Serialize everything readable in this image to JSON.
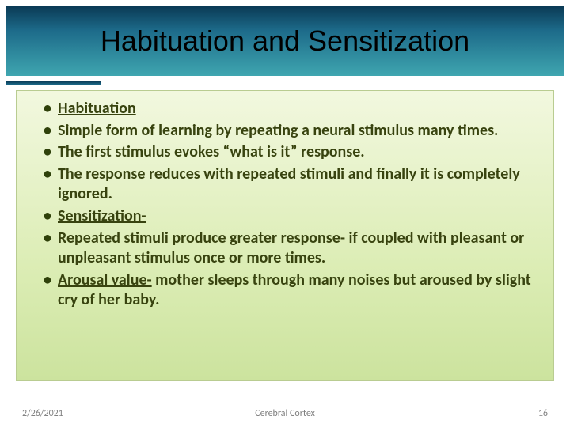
{
  "title": "Habituation and Sensitization",
  "title_bar": {
    "gradient_top": "#0a3a55",
    "gradient_mid": "#1d6b8a",
    "gradient_bottom": "#3fa6b0",
    "text_color": "#000000",
    "fontsize": 36
  },
  "content_box": {
    "gradient_top": "#f2f8df",
    "gradient_mid": "#dcedb5",
    "gradient_bottom": "#cce39e",
    "border_color": "#b9cc91",
    "text_color": "#38430f",
    "fontsize": 20,
    "font_weight": 600
  },
  "bullets": [
    {
      "segments": [
        {
          "text": "Habituation",
          "underline": true
        }
      ]
    },
    {
      "segments": [
        {
          "text": "Simple form of learning by repeating a neural stimulus many times.",
          "underline": false
        }
      ]
    },
    {
      "segments": [
        {
          "text": "The first stimulus evokes “what is it” response.",
          "underline": false
        }
      ]
    },
    {
      "segments": [
        {
          "text": "The response reduces with repeated stimuli and finally it is completely ignored.",
          "underline": false
        }
      ]
    },
    {
      "segments": [
        {
          "text": "Sensitization-",
          "underline": true
        }
      ]
    },
    {
      "segments": [
        {
          "text": "Repeated stimuli produce greater response- if coupled with pleasant or unpleasant stimulus once or more times.",
          "underline": false
        }
      ]
    },
    {
      "segments": [
        {
          "text": "Arousal value-",
          "underline": true
        },
        {
          "text": " mother sleeps through many noises but aroused by slight cry of her baby.",
          "underline": false
        }
      ]
    }
  ],
  "footer": {
    "date": "2/26/2021",
    "center": "Cerebral Cortex",
    "page": "16",
    "color": "#808080",
    "fontsize": 12
  }
}
